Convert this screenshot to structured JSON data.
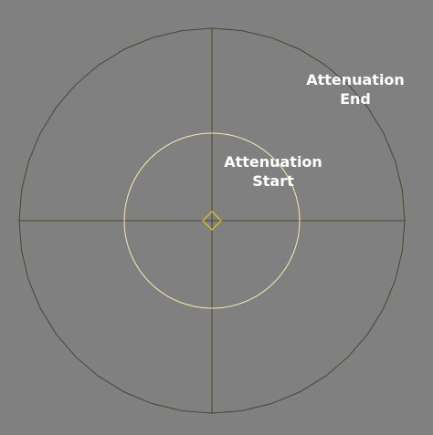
{
  "viewport": {
    "background_color": "#808080",
    "wire_color": "#4a4530",
    "start_circle_color": "#f5eba8",
    "light_marker_color": "#f2d20a"
  },
  "labels": {
    "attenuation_end": {
      "line1": "Attenuation",
      "line2": "End"
    },
    "attenuation_start": {
      "line1": "Attenuation",
      "line2": "Start"
    }
  },
  "icons": {
    "light_marker": "diamond-icon"
  }
}
